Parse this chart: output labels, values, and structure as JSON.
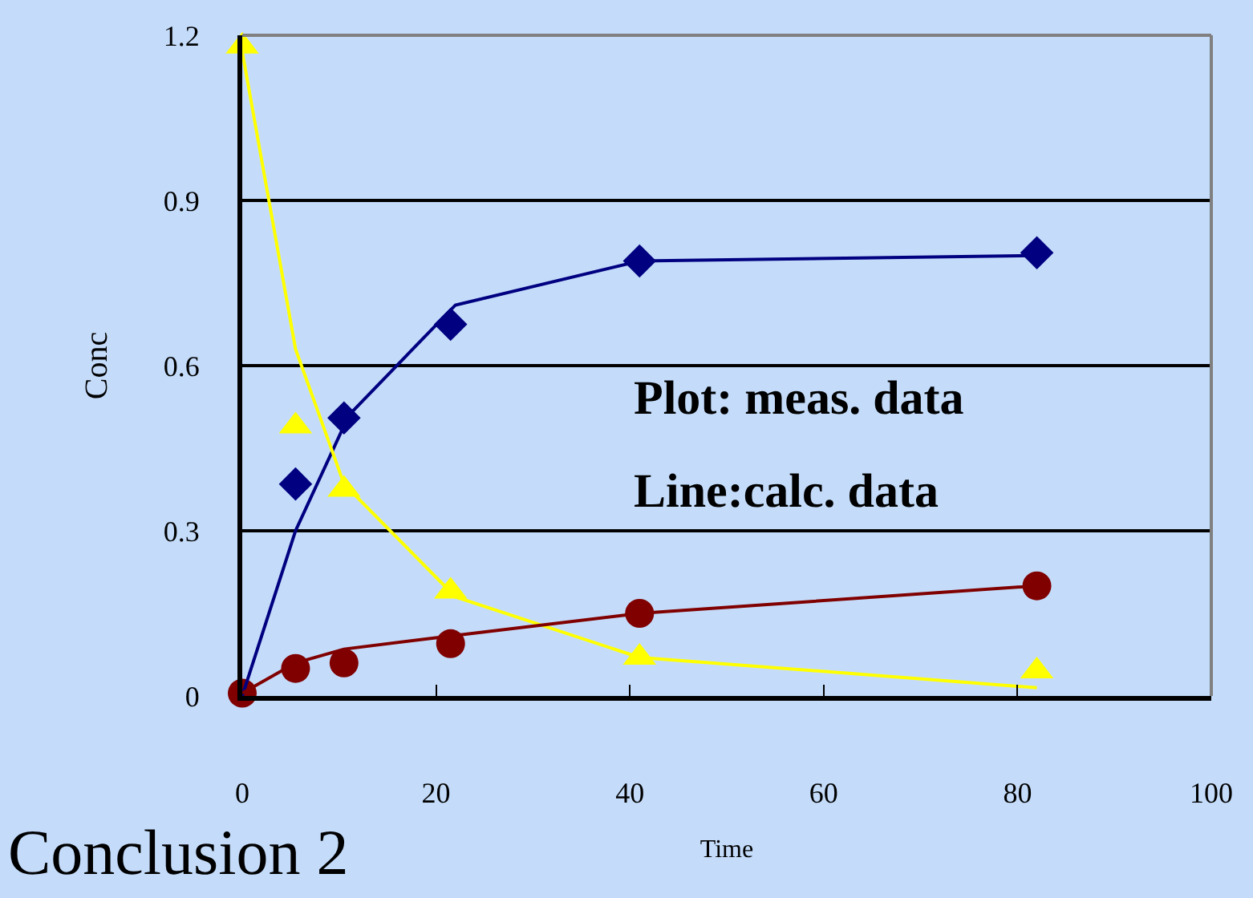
{
  "chart_data": {
    "type": "scatter",
    "xlabel": "Time",
    "ylabel": "Conc",
    "xlim": [
      0,
      100
    ],
    "xticks": [
      0,
      20,
      40,
      60,
      80,
      100
    ],
    "ylim": [
      0,
      1.2
    ],
    "yticks": [
      0,
      0.3,
      0.6,
      0.9,
      1.2
    ],
    "grid": "y",
    "series": [
      {
        "marker": "diamond",
        "color": "#000080",
        "x": [
          5.5,
          10.5,
          21.5,
          41,
          82
        ],
        "values": [
          0.385,
          0.505,
          0.675,
          0.79,
          0.805
        ]
      },
      {
        "marker": "triangle",
        "color": "#ffff00",
        "x": [
          0,
          5.5,
          10.5,
          21.5,
          41,
          82
        ],
        "values": [
          1.18,
          0.49,
          0.375,
          0.19,
          0.07,
          0.045
        ]
      },
      {
        "marker": "circle",
        "color": "#800000",
        "x": [
          0,
          5.5,
          10.5,
          21.5,
          41,
          82
        ],
        "values": [
          0.005,
          0.05,
          0.06,
          0.095,
          0.15,
          0.2
        ]
      },
      {
        "type": "line",
        "marker": "none",
        "color": "#000080",
        "x": [
          0,
          5.5,
          11,
          22,
          41,
          82
        ],
        "values": [
          0,
          0.3,
          0.51,
          0.71,
          0.79,
          0.8
        ]
      },
      {
        "type": "line",
        "marker": "none",
        "color": "#ffff00",
        "x": [
          0,
          5.5,
          10.5,
          22,
          41,
          82
        ],
        "values": [
          1.17,
          0.63,
          0.385,
          0.18,
          0.07,
          0.015
        ]
      },
      {
        "type": "line",
        "marker": "none",
        "color": "#800000",
        "x": [
          0,
          5.5,
          10.5,
          22,
          41,
          82
        ],
        "values": [
          0.005,
          0.06,
          0.085,
          0.11,
          0.15,
          0.2
        ]
      }
    ],
    "annotations": [
      "Plot: meas. data",
      "Line:calc. data",
      "Conclusion 2"
    ]
  }
}
